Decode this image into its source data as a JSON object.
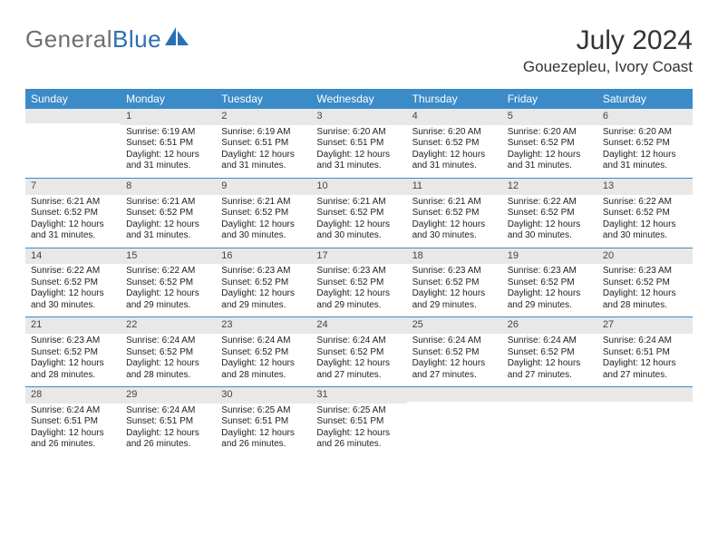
{
  "logo": {
    "part1": "General",
    "part2": "Blue"
  },
  "title": "July 2024",
  "location": "Gouezepleu, Ivory Coast",
  "day_headers": [
    "Sunday",
    "Monday",
    "Tuesday",
    "Wednesday",
    "Thursday",
    "Friday",
    "Saturday"
  ],
  "colors": {
    "header_blue": "#3b8bc9",
    "daynum_bg": "#e8e8e8",
    "logo_gray": "#6f6f6f",
    "logo_blue": "#2b6fb3"
  },
  "weeks": [
    [
      null,
      {
        "n": "1",
        "sunrise": "Sunrise: 6:19 AM",
        "sunset": "Sunset: 6:51 PM",
        "daylight": "Daylight: 12 hours and 31 minutes."
      },
      {
        "n": "2",
        "sunrise": "Sunrise: 6:19 AM",
        "sunset": "Sunset: 6:51 PM",
        "daylight": "Daylight: 12 hours and 31 minutes."
      },
      {
        "n": "3",
        "sunrise": "Sunrise: 6:20 AM",
        "sunset": "Sunset: 6:51 PM",
        "daylight": "Daylight: 12 hours and 31 minutes."
      },
      {
        "n": "4",
        "sunrise": "Sunrise: 6:20 AM",
        "sunset": "Sunset: 6:52 PM",
        "daylight": "Daylight: 12 hours and 31 minutes."
      },
      {
        "n": "5",
        "sunrise": "Sunrise: 6:20 AM",
        "sunset": "Sunset: 6:52 PM",
        "daylight": "Daylight: 12 hours and 31 minutes."
      },
      {
        "n": "6",
        "sunrise": "Sunrise: 6:20 AM",
        "sunset": "Sunset: 6:52 PM",
        "daylight": "Daylight: 12 hours and 31 minutes."
      }
    ],
    [
      {
        "n": "7",
        "sunrise": "Sunrise: 6:21 AM",
        "sunset": "Sunset: 6:52 PM",
        "daylight": "Daylight: 12 hours and 31 minutes."
      },
      {
        "n": "8",
        "sunrise": "Sunrise: 6:21 AM",
        "sunset": "Sunset: 6:52 PM",
        "daylight": "Daylight: 12 hours and 31 minutes."
      },
      {
        "n": "9",
        "sunrise": "Sunrise: 6:21 AM",
        "sunset": "Sunset: 6:52 PM",
        "daylight": "Daylight: 12 hours and 30 minutes."
      },
      {
        "n": "10",
        "sunrise": "Sunrise: 6:21 AM",
        "sunset": "Sunset: 6:52 PM",
        "daylight": "Daylight: 12 hours and 30 minutes."
      },
      {
        "n": "11",
        "sunrise": "Sunrise: 6:21 AM",
        "sunset": "Sunset: 6:52 PM",
        "daylight": "Daylight: 12 hours and 30 minutes."
      },
      {
        "n": "12",
        "sunrise": "Sunrise: 6:22 AM",
        "sunset": "Sunset: 6:52 PM",
        "daylight": "Daylight: 12 hours and 30 minutes."
      },
      {
        "n": "13",
        "sunrise": "Sunrise: 6:22 AM",
        "sunset": "Sunset: 6:52 PM",
        "daylight": "Daylight: 12 hours and 30 minutes."
      }
    ],
    [
      {
        "n": "14",
        "sunrise": "Sunrise: 6:22 AM",
        "sunset": "Sunset: 6:52 PM",
        "daylight": "Daylight: 12 hours and 30 minutes."
      },
      {
        "n": "15",
        "sunrise": "Sunrise: 6:22 AM",
        "sunset": "Sunset: 6:52 PM",
        "daylight": "Daylight: 12 hours and 29 minutes."
      },
      {
        "n": "16",
        "sunrise": "Sunrise: 6:23 AM",
        "sunset": "Sunset: 6:52 PM",
        "daylight": "Daylight: 12 hours and 29 minutes."
      },
      {
        "n": "17",
        "sunrise": "Sunrise: 6:23 AM",
        "sunset": "Sunset: 6:52 PM",
        "daylight": "Daylight: 12 hours and 29 minutes."
      },
      {
        "n": "18",
        "sunrise": "Sunrise: 6:23 AM",
        "sunset": "Sunset: 6:52 PM",
        "daylight": "Daylight: 12 hours and 29 minutes."
      },
      {
        "n": "19",
        "sunrise": "Sunrise: 6:23 AM",
        "sunset": "Sunset: 6:52 PM",
        "daylight": "Daylight: 12 hours and 29 minutes."
      },
      {
        "n": "20",
        "sunrise": "Sunrise: 6:23 AM",
        "sunset": "Sunset: 6:52 PM",
        "daylight": "Daylight: 12 hours and 28 minutes."
      }
    ],
    [
      {
        "n": "21",
        "sunrise": "Sunrise: 6:23 AM",
        "sunset": "Sunset: 6:52 PM",
        "daylight": "Daylight: 12 hours and 28 minutes."
      },
      {
        "n": "22",
        "sunrise": "Sunrise: 6:24 AM",
        "sunset": "Sunset: 6:52 PM",
        "daylight": "Daylight: 12 hours and 28 minutes."
      },
      {
        "n": "23",
        "sunrise": "Sunrise: 6:24 AM",
        "sunset": "Sunset: 6:52 PM",
        "daylight": "Daylight: 12 hours and 28 minutes."
      },
      {
        "n": "24",
        "sunrise": "Sunrise: 6:24 AM",
        "sunset": "Sunset: 6:52 PM",
        "daylight": "Daylight: 12 hours and 27 minutes."
      },
      {
        "n": "25",
        "sunrise": "Sunrise: 6:24 AM",
        "sunset": "Sunset: 6:52 PM",
        "daylight": "Daylight: 12 hours and 27 minutes."
      },
      {
        "n": "26",
        "sunrise": "Sunrise: 6:24 AM",
        "sunset": "Sunset: 6:52 PM",
        "daylight": "Daylight: 12 hours and 27 minutes."
      },
      {
        "n": "27",
        "sunrise": "Sunrise: 6:24 AM",
        "sunset": "Sunset: 6:51 PM",
        "daylight": "Daylight: 12 hours and 27 minutes."
      }
    ],
    [
      {
        "n": "28",
        "sunrise": "Sunrise: 6:24 AM",
        "sunset": "Sunset: 6:51 PM",
        "daylight": "Daylight: 12 hours and 26 minutes."
      },
      {
        "n": "29",
        "sunrise": "Sunrise: 6:24 AM",
        "sunset": "Sunset: 6:51 PM",
        "daylight": "Daylight: 12 hours and 26 minutes."
      },
      {
        "n": "30",
        "sunrise": "Sunrise: 6:25 AM",
        "sunset": "Sunset: 6:51 PM",
        "daylight": "Daylight: 12 hours and 26 minutes."
      },
      {
        "n": "31",
        "sunrise": "Sunrise: 6:25 AM",
        "sunset": "Sunset: 6:51 PM",
        "daylight": "Daylight: 12 hours and 26 minutes."
      },
      null,
      null,
      null
    ]
  ]
}
